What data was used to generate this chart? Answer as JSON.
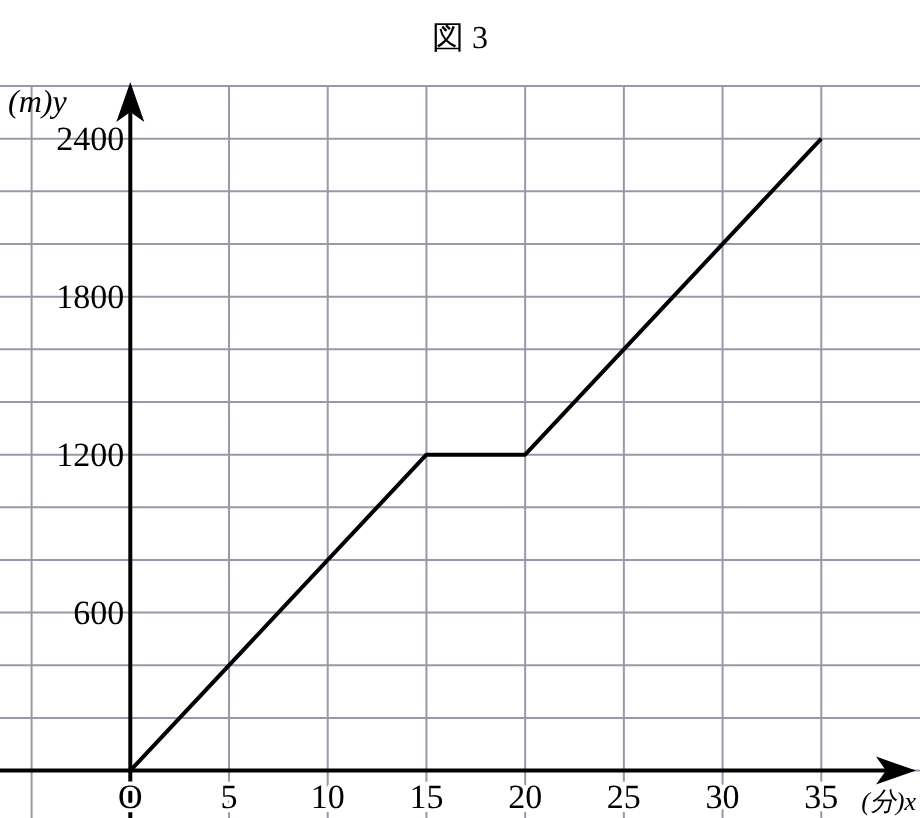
{
  "chart_data": {
    "type": "line",
    "title": "図 3",
    "xlabel": "(分)x",
    "ylabel": "(m)y",
    "x": [
      0,
      15,
      20,
      35
    ],
    "values": [
      0,
      1200,
      1200,
      2400
    ],
    "color": "#000000",
    "xlim": [
      -6.6,
      40
    ],
    "ylim": [
      -180,
      2600
    ],
    "xticks": [
      {
        "value": -5,
        "label": null
      },
      {
        "value": 0,
        "label": "O"
      },
      5,
      10,
      15,
      20,
      25,
      30,
      35
    ],
    "yticks": [
      {
        "value": 0,
        "label": null
      },
      {
        "value": 200,
        "label": null
      },
      {
        "value": 400,
        "label": null
      },
      600,
      {
        "value": 800,
        "label": null
      },
      {
        "value": 1000,
        "label": null
      },
      1200,
      {
        "value": 1400,
        "label": null
      },
      {
        "value": 1600,
        "label": null
      },
      1800,
      {
        "value": 2000,
        "label": null
      },
      {
        "value": 2200,
        "label": null
      },
      2400,
      {
        "value": 2600,
        "label": null
      }
    ],
    "grid": true,
    "marker": "none",
    "line_style": "solid"
  }
}
